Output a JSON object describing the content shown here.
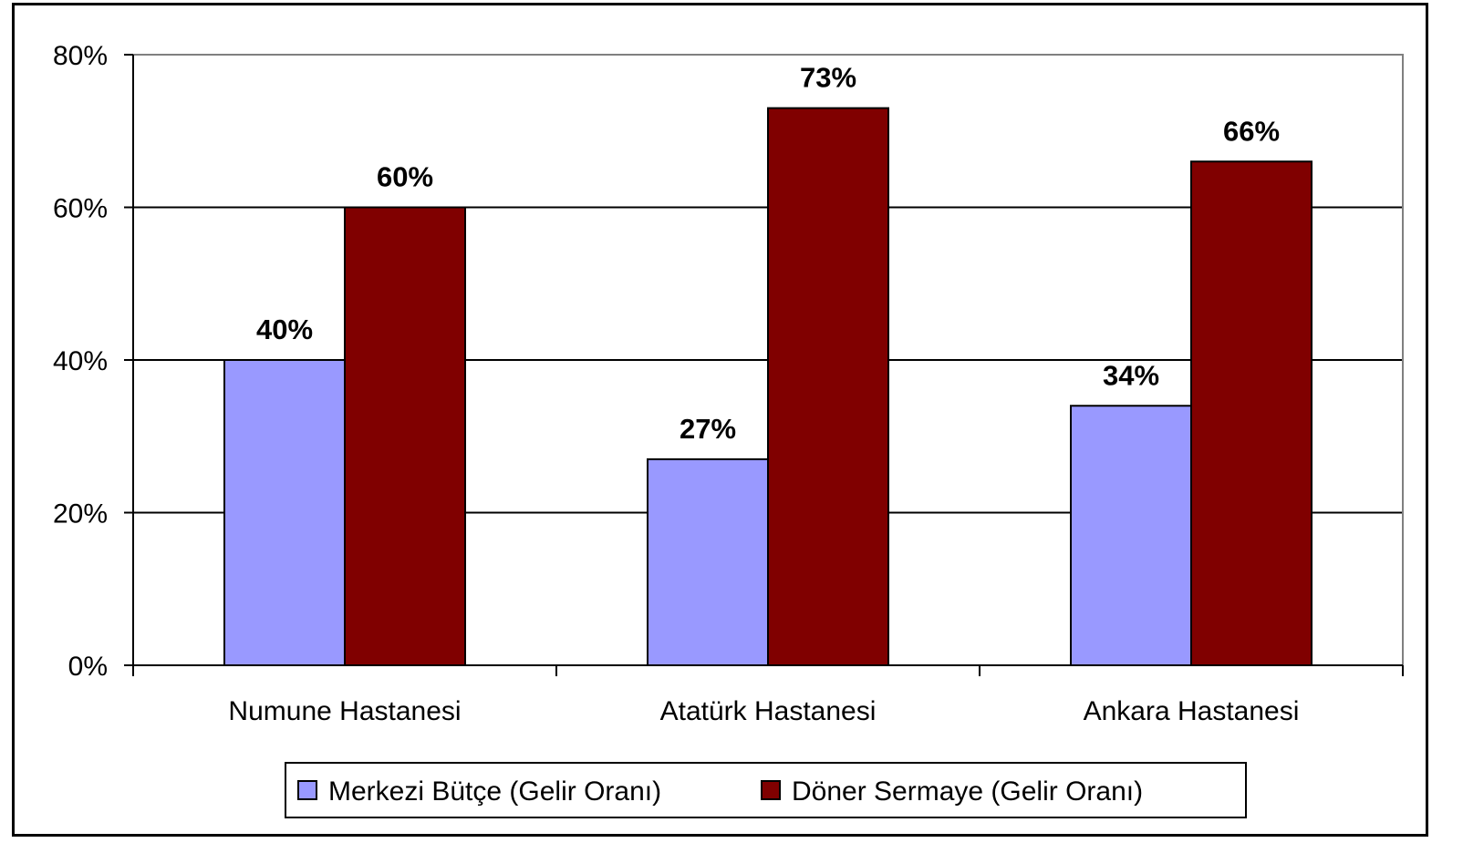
{
  "chart_data": {
    "type": "bar",
    "categories": [
      "Numune Hastanesi",
      "Atatürk Hastanesi",
      "Ankara Hastanesi"
    ],
    "series": [
      {
        "name": "Merkezi Bütçe (Gelir Oranı)",
        "values": [
          40,
          27,
          34
        ],
        "labels": [
          "40%",
          "27%",
          "34%"
        ],
        "color": "#9999ff"
      },
      {
        "name": "Döner Sermaye (Gelir Oranı)",
        "values": [
          60,
          73,
          66
        ],
        "labels": [
          "60%",
          "73%",
          "66%"
        ],
        "color": "#800000"
      }
    ],
    "ylim": [
      0,
      80
    ],
    "yticks": [
      0,
      20,
      40,
      60,
      80
    ],
    "ytick_labels": [
      "0%",
      "20%",
      "40%",
      "60%",
      "80%"
    ],
    "grid": true,
    "legend_position": "bottom"
  }
}
